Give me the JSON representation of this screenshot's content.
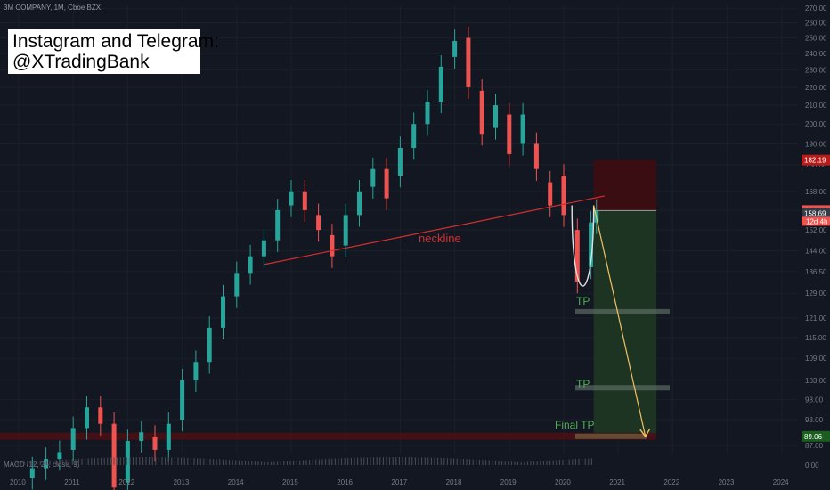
{
  "header": {
    "symbol": "3M COMPANY, 1M, Cboe BZX"
  },
  "promo": {
    "line1": "Instagram and Telegram:",
    "line2": "@XTradingBank"
  },
  "annotations": {
    "neckline": "neckline",
    "tp1": "TP",
    "tp2": "TP",
    "final_tp": "Final TP"
  },
  "indicator": {
    "label": "MACD (12, 26, close, 9)",
    "zero_label": "0.00"
  },
  "colors": {
    "background": "#131722",
    "up": "#26a69a",
    "down": "#ef5350",
    "neckline": "#d32f2f",
    "stop_zone": "#3a0d12",
    "target_zone": "#1e3422",
    "arrow": "#f2c063",
    "grid": "#1e222d"
  },
  "chart_data": {
    "type": "candlestick",
    "x_ticks": [
      "2010",
      "2011",
      "2012",
      "2013",
      "2014",
      "2015",
      "2016",
      "2017",
      "2018",
      "2019",
      "2020",
      "2021",
      "2022",
      "2023",
      "2024"
    ],
    "y_ticks": [
      87.0,
      93.0,
      98.0,
      103.0,
      109.0,
      115.0,
      121.0,
      129.0,
      136.5,
      144.0,
      152.0,
      160.0,
      168.0,
      180.0,
      190.0,
      200.0,
      210.0,
      220.0,
      230.0,
      240.0,
      250.0,
      260.0,
      270.0
    ],
    "y_scale": "log",
    "ylim": [
      85,
      272
    ],
    "price_labels": [
      {
        "value": 182.19,
        "text": "182.19",
        "color": "#b71c1c"
      },
      {
        "value": 159.83,
        "text": "159.83",
        "color": "#ef5350"
      },
      {
        "value": 158.69,
        "text": "158.69",
        "color": "#363a45"
      },
      {
        "value": 89.06,
        "text": "89.06",
        "color": "#1b5e20"
      }
    ],
    "countdown_label": "12d 4h",
    "series": [
      {
        "x": 2010.25,
        "open": 80.0,
        "close": 82.0
      },
      {
        "x": 2010.5,
        "open": 82.0,
        "close": 84.0
      },
      {
        "x": 2010.75,
        "open": 84.0,
        "close": 85.5
      },
      {
        "x": 2011.0,
        "open": 86.0,
        "close": 91.0
      },
      {
        "x": 2011.25,
        "open": 91.0,
        "close": 96.0
      },
      {
        "x": 2011.5,
        "open": 96.0,
        "close": 92.0
      },
      {
        "x": 2011.75,
        "open": 92.0,
        "close": 78.0
      },
      {
        "x": 2012.0,
        "open": 79.0,
        "close": 88.0
      },
      {
        "x": 2012.25,
        "open": 88.0,
        "close": 90.0
      },
      {
        "x": 2012.5,
        "open": 89.0,
        "close": 86.0
      },
      {
        "x": 2012.75,
        "open": 86.0,
        "close": 92.0
      },
      {
        "x": 2013.0,
        "open": 93.0,
        "close": 103.0
      },
      {
        "x": 2013.25,
        "open": 103.0,
        "close": 108.0
      },
      {
        "x": 2013.5,
        "open": 108.0,
        "close": 118.0
      },
      {
        "x": 2013.75,
        "open": 118.0,
        "close": 128.0
      },
      {
        "x": 2014.0,
        "open": 128.0,
        "close": 136.0
      },
      {
        "x": 2014.25,
        "open": 136.0,
        "close": 142.0
      },
      {
        "x": 2014.5,
        "open": 142.0,
        "close": 148.0
      },
      {
        "x": 2014.75,
        "open": 148.0,
        "close": 160.0
      },
      {
        "x": 2015.0,
        "open": 162.0,
        "close": 168.0
      },
      {
        "x": 2015.25,
        "open": 168.0,
        "close": 160.0
      },
      {
        "x": 2015.5,
        "open": 158.0,
        "close": 152.0
      },
      {
        "x": 2015.75,
        "open": 150.0,
        "close": 142.0
      },
      {
        "x": 2016.0,
        "open": 146.0,
        "close": 158.0
      },
      {
        "x": 2016.25,
        "open": 158.0,
        "close": 168.0
      },
      {
        "x": 2016.5,
        "open": 170.0,
        "close": 178.0
      },
      {
        "x": 2016.75,
        "open": 178.0,
        "close": 165.0
      },
      {
        "x": 2017.0,
        "open": 175.0,
        "close": 188.0
      },
      {
        "x": 2017.25,
        "open": 188.0,
        "close": 200.0
      },
      {
        "x": 2017.5,
        "open": 200.0,
        "close": 212.0
      },
      {
        "x": 2017.75,
        "open": 212.0,
        "close": 232.0
      },
      {
        "x": 2018.0,
        "open": 238.0,
        "close": 248.0
      },
      {
        "x": 2018.25,
        "open": 250.0,
        "close": 220.0
      },
      {
        "x": 2018.5,
        "open": 218.0,
        "close": 195.0
      },
      {
        "x": 2018.75,
        "open": 198.0,
        "close": 210.0
      },
      {
        "x": 2019.0,
        "open": 205.0,
        "close": 185.0
      },
      {
        "x": 2019.25,
        "open": 190.0,
        "close": 205.0
      },
      {
        "x": 2019.5,
        "open": 190.0,
        "close": 178.0
      },
      {
        "x": 2019.75,
        "open": 172.0,
        "close": 162.0
      },
      {
        "x": 2020.0,
        "open": 175.0,
        "close": 158.0
      },
      {
        "x": 2020.25,
        "open": 152.0,
        "close": 133.0
      },
      {
        "x": 2020.5,
        "open": 138.0,
        "close": 155.0
      },
      {
        "x": 2020.6,
        "open": 155.0,
        "close": 159.8
      }
    ],
    "neckline": {
      "x": [
        2014.5,
        2020.75
      ],
      "y": [
        139.0,
        166.0
      ]
    },
    "position": {
      "x_start": 2020.55,
      "x_end": 2021.7,
      "entry": 159.83,
      "stop": 182.19,
      "target": 89.06
    },
    "tp_levels": [
      123.0,
      101.0
    ],
    "projection_arrow": {
      "x": [
        2020.55,
        2021.5
      ],
      "y": [
        162.0,
        89.0
      ]
    }
  }
}
